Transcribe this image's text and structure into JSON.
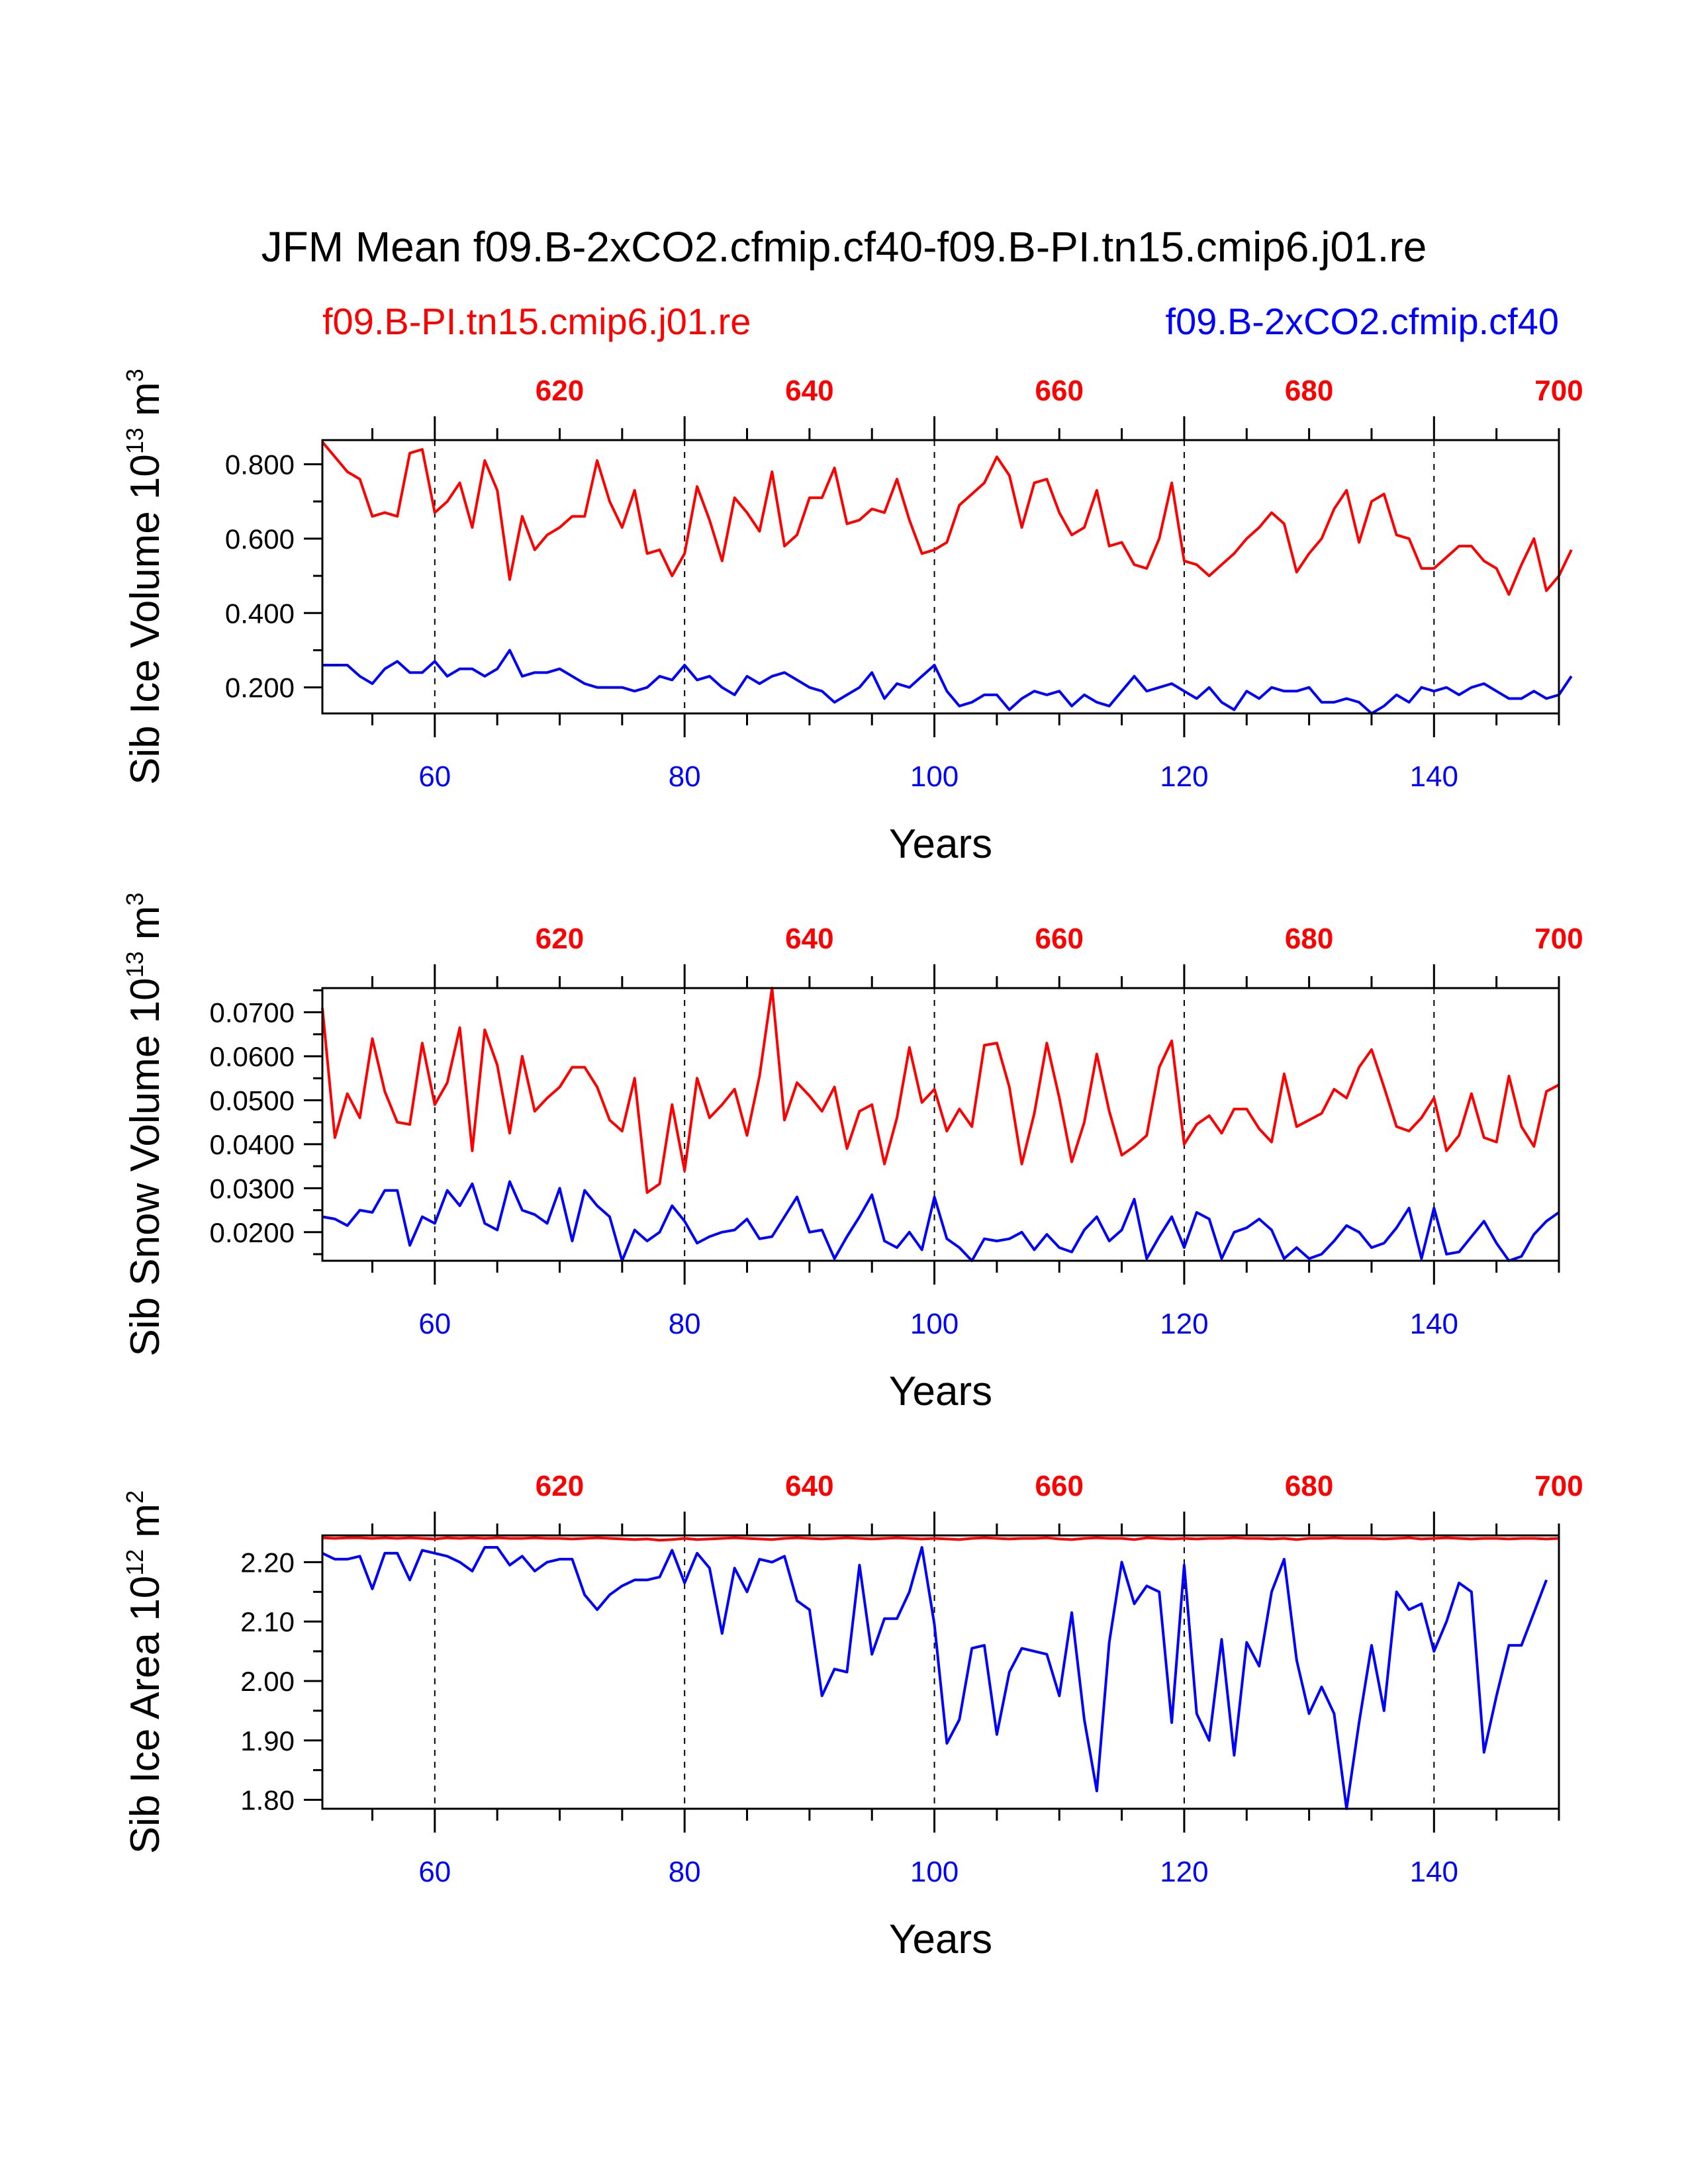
{
  "title": "JFM Mean f09.B-2xCO2.cfmip.cf40-f09.B-PI.tn15.cmip6.j01.re",
  "legend": {
    "red_label": "f09.B-PI.tn15.cmip6.j01.re",
    "blue_label": "f09.B-2xCO2.cfmip.cf40"
  },
  "colors": {
    "red": "#ff0000",
    "blue": "#0000ff",
    "axis": "#000000"
  },
  "chart_data": [
    {
      "type": "line",
      "ylabel_text": "Sib Ice Volume 10",
      "ylabel_exp": "13",
      "ylabel_unit": " m",
      "ylabel_unit_exp": "3",
      "xlabel": "Years",
      "xlim": [
        51,
        150
      ],
      "ylim": [
        0.13,
        0.865
      ],
      "yticks": [
        0.2,
        0.4,
        0.6,
        0.8
      ],
      "ytick_labels": [
        "0.200",
        "0.400",
        "0.600",
        "0.800"
      ],
      "bottom_ticks": [
        "60",
        "80",
        "100",
        "120",
        "140"
      ],
      "top_ticks": [
        "620",
        "640",
        "660",
        "680",
        "700"
      ],
      "dashed_grid_x": [
        60,
        80,
        100,
        120,
        140
      ],
      "series": [
        {
          "name": "f09.B-PI.tn15.cmip6.j01.re",
          "color": "#ff0000",
          "x_start": 51,
          "values": [
            0.86,
            0.82,
            0.78,
            0.76,
            0.66,
            0.67,
            0.66,
            0.83,
            0.84,
            0.67,
            0.7,
            0.75,
            0.63,
            0.81,
            0.73,
            0.49,
            0.66,
            0.57,
            0.61,
            0.63,
            0.66,
            0.66,
            0.81,
            0.7,
            0.63,
            0.73,
            0.56,
            0.57,
            0.5,
            0.56,
            0.74,
            0.65,
            0.54,
            0.71,
            0.67,
            0.62,
            0.78,
            0.58,
            0.61,
            0.71,
            0.71,
            0.79,
            0.64,
            0.65,
            0.68,
            0.67,
            0.76,
            0.65,
            0.56,
            0.57,
            0.59,
            0.69,
            0.72,
            0.75,
            0.82,
            0.77,
            0.63,
            0.75,
            0.76,
            0.67,
            0.61,
            0.63,
            0.73,
            0.58,
            0.59,
            0.53,
            0.52,
            0.6,
            0.75,
            0.54,
            0.53,
            0.5,
            0.53,
            0.56,
            0.6,
            0.63,
            0.67,
            0.64,
            0.51,
            0.56,
            0.6,
            0.68,
            0.73,
            0.59,
            0.7,
            0.72,
            0.61,
            0.6,
            0.52,
            0.52,
            0.55,
            0.58,
            0.58,
            0.54,
            0.52,
            0.45,
            0.53,
            0.6,
            0.46,
            0.5,
            0.57
          ]
        },
        {
          "name": "f09.B-2xCO2.cfmip.cf40",
          "color": "#0000ff",
          "x_start": 51,
          "values": [
            0.26,
            0.26,
            0.26,
            0.23,
            0.21,
            0.25,
            0.27,
            0.24,
            0.24,
            0.27,
            0.23,
            0.25,
            0.25,
            0.23,
            0.25,
            0.3,
            0.23,
            0.24,
            0.24,
            0.25,
            0.23,
            0.21,
            0.2,
            0.2,
            0.2,
            0.19,
            0.2,
            0.23,
            0.22,
            0.26,
            0.22,
            0.23,
            0.2,
            0.18,
            0.23,
            0.21,
            0.23,
            0.24,
            0.22,
            0.2,
            0.19,
            0.16,
            0.18,
            0.2,
            0.24,
            0.17,
            0.21,
            0.2,
            0.23,
            0.26,
            0.19,
            0.15,
            0.16,
            0.18,
            0.18,
            0.14,
            0.17,
            0.19,
            0.18,
            0.19,
            0.15,
            0.18,
            0.16,
            0.15,
            0.19,
            0.23,
            0.19,
            0.2,
            0.21,
            0.19,
            0.17,
            0.2,
            0.16,
            0.14,
            0.19,
            0.17,
            0.2,
            0.19,
            0.19,
            0.2,
            0.16,
            0.16,
            0.17,
            0.16,
            0.13,
            0.15,
            0.18,
            0.16,
            0.2,
            0.19,
            0.2,
            0.18,
            0.2,
            0.21,
            0.19,
            0.17,
            0.17,
            0.19,
            0.17,
            0.18,
            0.23
          ]
        }
      ]
    },
    {
      "type": "line",
      "ylabel_text": "Sib Snow Volume 10",
      "ylabel_exp": "13",
      "ylabel_unit": " m",
      "ylabel_unit_exp": "3",
      "xlabel": "Years",
      "xlim": [
        51,
        150
      ],
      "ylim": [
        0.0135,
        0.0755
      ],
      "yticks": [
        0.02,
        0.03,
        0.04,
        0.05,
        0.06,
        0.07
      ],
      "ytick_labels": [
        "0.0200",
        "0.0300",
        "0.0400",
        "0.0500",
        "0.0600",
        "0.0700"
      ],
      "bottom_ticks": [
        "60",
        "80",
        "100",
        "120",
        "140"
      ],
      "top_ticks": [
        "620",
        "640",
        "660",
        "680",
        "700"
      ],
      "dashed_grid_x": [
        60,
        80,
        100,
        120,
        140
      ],
      "series": [
        {
          "name": "f09.B-PI.tn15.cmip6.j01.re",
          "color": "#ff0000",
          "x_start": 51,
          "values": [
            0.071,
            0.0415,
            0.0515,
            0.046,
            0.064,
            0.052,
            0.045,
            0.0445,
            0.063,
            0.049,
            0.054,
            0.0665,
            0.0385,
            0.066,
            0.058,
            0.0425,
            0.06,
            0.0475,
            0.0505,
            0.053,
            0.0575,
            0.0575,
            0.053,
            0.0455,
            0.043,
            0.055,
            0.029,
            0.031,
            0.049,
            0.034,
            0.055,
            0.046,
            0.049,
            0.0525,
            0.042,
            0.0555,
            0.0755,
            0.0455,
            0.054,
            0.051,
            0.0475,
            0.053,
            0.039,
            0.0475,
            0.049,
            0.0355,
            0.046,
            0.062,
            0.0495,
            0.0525,
            0.043,
            0.048,
            0.044,
            0.0625,
            0.063,
            0.053,
            0.0355,
            0.047,
            0.063,
            0.0505,
            0.036,
            0.045,
            0.0605,
            0.0475,
            0.0375,
            0.0395,
            0.042,
            0.0575,
            0.0635,
            0.04,
            0.0445,
            0.0465,
            0.0425,
            0.048,
            0.048,
            0.0435,
            0.0405,
            0.056,
            0.044,
            0.0455,
            0.047,
            0.0525,
            0.0505,
            0.0575,
            0.0615,
            0.053,
            0.044,
            0.043,
            0.046,
            0.0505,
            0.0385,
            0.042,
            0.0515,
            0.0415,
            0.0405,
            0.0555,
            0.044,
            0.0395,
            0.052,
            0.0535
          ]
        },
        {
          "name": "f09.B-2xCO2.cfmip.cf40",
          "color": "#0000ff",
          "x_start": 51,
          "values": [
            0.0235,
            0.023,
            0.0215,
            0.025,
            0.0245,
            0.0295,
            0.0295,
            0.017,
            0.0235,
            0.022,
            0.0295,
            0.026,
            0.031,
            0.022,
            0.0205,
            0.0315,
            0.025,
            0.024,
            0.022,
            0.03,
            0.018,
            0.0295,
            0.026,
            0.0235,
            0.0135,
            0.0205,
            0.018,
            0.02,
            0.026,
            0.0225,
            0.0175,
            0.019,
            0.02,
            0.0205,
            0.023,
            0.0185,
            0.019,
            0.0235,
            0.028,
            0.02,
            0.0205,
            0.014,
            0.019,
            0.0235,
            0.0285,
            0.018,
            0.0165,
            0.02,
            0.016,
            0.028,
            0.0185,
            0.0165,
            0.0135,
            0.0185,
            0.018,
            0.0185,
            0.02,
            0.016,
            0.0195,
            0.0165,
            0.0155,
            0.0205,
            0.0235,
            0.018,
            0.0205,
            0.0275,
            0.014,
            0.019,
            0.0235,
            0.0165,
            0.0245,
            0.023,
            0.014,
            0.02,
            0.021,
            0.023,
            0.0205,
            0.014,
            0.0165,
            0.014,
            0.015,
            0.018,
            0.0215,
            0.02,
            0.0165,
            0.0175,
            0.021,
            0.0255,
            0.014,
            0.0255,
            0.015,
            0.0155,
            0.019,
            0.0225,
            0.0175,
            0.0135,
            0.0145,
            0.0195,
            0.0225,
            0.0245
          ]
        }
      ]
    },
    {
      "type": "line",
      "ylabel_text": "Sib Ice Area 10",
      "ylabel_exp": "12",
      "ylabel_unit": " m",
      "ylabel_unit_exp": "2",
      "xlabel": "Years",
      "xlim": [
        51,
        150
      ],
      "ylim": [
        1.785,
        2.245
      ],
      "yticks": [
        1.8,
        1.9,
        2.0,
        2.1,
        2.2
      ],
      "ytick_labels": [
        "1.80",
        "1.90",
        "2.00",
        "2.10",
        "2.20"
      ],
      "bottom_ticks": [
        "60",
        "80",
        "100",
        "120",
        "140"
      ],
      "top_ticks": [
        "620",
        "640",
        "660",
        "680",
        "700"
      ],
      "dashed_grid_x": [
        60,
        80,
        100,
        120,
        140
      ],
      "series": [
        {
          "name": "f09.B-PI.tn15.cmip6.j01.re",
          "color": "#ff0000",
          "x_start": 51,
          "values": [
            2.241,
            2.24,
            2.241,
            2.241,
            2.24,
            2.241,
            2.24,
            2.241,
            2.24,
            2.239,
            2.241,
            2.24,
            2.241,
            2.24,
            2.241,
            2.24,
            2.24,
            2.241,
            2.24,
            2.24,
            2.239,
            2.24,
            2.241,
            2.24,
            2.239,
            2.238,
            2.239,
            2.237,
            2.238,
            2.24,
            2.238,
            2.239,
            2.24,
            2.241,
            2.24,
            2.239,
            2.238,
            2.24,
            2.241,
            2.24,
            2.239,
            2.24,
            2.241,
            2.24,
            2.239,
            2.24,
            2.241,
            2.24,
            2.239,
            2.24,
            2.239,
            2.238,
            2.24,
            2.241,
            2.24,
            2.239,
            2.24,
            2.24,
            2.241,
            2.239,
            2.238,
            2.24,
            2.241,
            2.24,
            2.24,
            2.238,
            2.241,
            2.24,
            2.239,
            2.24,
            2.239,
            2.24,
            2.24,
            2.241,
            2.24,
            2.24,
            2.239,
            2.24,
            2.238,
            2.24,
            2.24,
            2.241,
            2.24,
            2.24,
            2.24,
            2.239,
            2.24,
            2.241,
            2.239,
            2.24,
            2.241,
            2.24,
            2.239,
            2.24,
            2.24,
            2.239,
            2.24,
            2.24,
            2.239,
            2.24
          ]
        },
        {
          "name": "f09.B-2xCO2.cfmip.cf40",
          "color": "#0000ff",
          "x_start": 51,
          "values": [
            2.215,
            2.205,
            2.205,
            2.21,
            2.155,
            2.215,
            2.215,
            2.17,
            2.22,
            2.215,
            2.21,
            2.2,
            2.185,
            2.225,
            2.225,
            2.195,
            2.21,
            2.185,
            2.2,
            2.205,
            2.205,
            2.145,
            2.12,
            2.145,
            2.16,
            2.17,
            2.17,
            2.175,
            2.22,
            2.165,
            2.215,
            2.19,
            2.08,
            2.19,
            2.15,
            2.205,
            2.2,
            2.21,
            2.135,
            2.12,
            1.975,
            2.02,
            2.015,
            2.195,
            2.045,
            2.105,
            2.105,
            2.15,
            2.225,
            2.095,
            1.895,
            1.935,
            2.055,
            2.06,
            1.91,
            2.015,
            2.055,
            2.05,
            2.045,
            1.975,
            2.115,
            1.935,
            1.815,
            2.065,
            2.2,
            2.13,
            2.16,
            2.15,
            1.93,
            2.195,
            1.945,
            1.9,
            2.07,
            1.875,
            2.065,
            2.025,
            2.15,
            2.205,
            2.035,
            1.945,
            1.99,
            1.945,
            1.785,
            1.93,
            2.06,
            1.95,
            2.15,
            2.12,
            2.13,
            2.05,
            2.1,
            2.165,
            2.15,
            1.88,
            1.975,
            2.06,
            2.06,
            2.115,
            2.17
          ]
        }
      ]
    }
  ]
}
